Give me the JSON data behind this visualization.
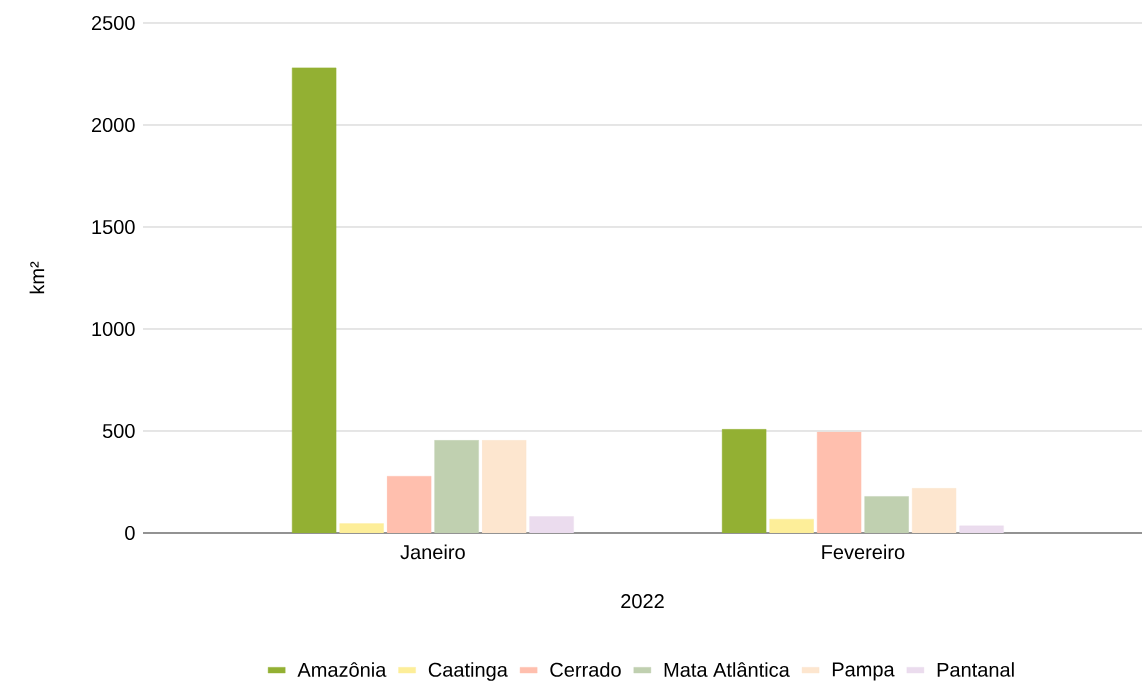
{
  "chart_data": {
    "type": "bar",
    "xlabel": "2022",
    "ylabel": "km²",
    "categories": [
      "Janeiro",
      "Fevereiro"
    ],
    "series": [
      {
        "name": "Amazônia",
        "color": "#93b033",
        "values": [
          2280,
          508
        ]
      },
      {
        "name": "Caatinga",
        "color": "#fdee99",
        "values": [
          46,
          68
        ]
      },
      {
        "name": "Cerrado",
        "color": "#ffbfae",
        "values": [
          278,
          495
        ]
      },
      {
        "name": "Mata Atlântica",
        "color": "#c0d0b0",
        "values": [
          455,
          179
        ]
      },
      {
        "name": "Pampa",
        "color": "#fde6cf",
        "values": [
          455,
          219
        ]
      },
      {
        "name": "Pantanal",
        "color": "#ebdcee",
        "values": [
          81,
          35
        ]
      }
    ],
    "ylim": [
      0,
      2500
    ],
    "yticks": [
      0,
      500,
      1000,
      1500,
      2000,
      2500
    ],
    "grid": "y",
    "legend": "bottom"
  }
}
